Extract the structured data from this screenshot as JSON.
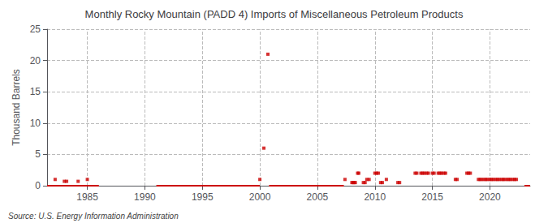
{
  "chart_data": {
    "type": "scatter",
    "title": "Monthly Rocky Mountain (PADD 4) Imports of Miscellaneous Petroleum Products",
    "ylabel": "Thousand Barrels",
    "source": "Source: U.S. Energy Information Administration",
    "color": "#cc0000",
    "marker": "square",
    "grid": true,
    "xlim": [
      1981.5,
      2023.5
    ],
    "xticks": [
      1985,
      1990,
      1995,
      2000,
      2005,
      2010,
      2015,
      2020
    ],
    "ylim": [
      0,
      25
    ],
    "yticks": [
      0,
      5,
      10,
      15,
      20,
      25
    ],
    "x": [
      1982.2,
      1983.0,
      1983.2,
      1984.2,
      1985.0,
      2000.0,
      2000.35,
      2000.7,
      2007.4,
      2008.0,
      2008.1,
      2008.2,
      2008.3,
      2008.5,
      2008.6,
      2009.0,
      2009.15,
      2009.3,
      2009.5,
      2010.0,
      2010.15,
      2010.3,
      2010.5,
      2010.65,
      2011.0,
      2012.0,
      2012.15,
      2013.5,
      2013.65,
      2014.0,
      2014.15,
      2014.3,
      2014.5,
      2014.65,
      2015.0,
      2015.15,
      2015.5,
      2015.65,
      2015.8,
      2016.0,
      2016.15,
      2017.0,
      2017.15,
      2018.0,
      2018.15,
      2018.3,
      2019.0,
      2019.15,
      2019.3,
      2019.5,
      2019.65,
      2019.8,
      2020.0,
      2020.15,
      2020.3,
      2020.5,
      2020.65,
      2020.8,
      2021.0,
      2021.15,
      2021.3,
      2021.5,
      2021.65,
      2021.8,
      2022.0,
      2022.15,
      2022.3
    ],
    "values": [
      1.0,
      0.7,
      0.7,
      0.7,
      1.0,
      1.0,
      6.0,
      21.0,
      1.0,
      0.5,
      0.5,
      0.5,
      0.5,
      2.0,
      2.0,
      0.5,
      0.5,
      1.0,
      1.0,
      2.0,
      2.0,
      2.0,
      0.5,
      0.5,
      1.0,
      0.5,
      0.5,
      2.0,
      2.0,
      2.0,
      2.0,
      2.0,
      2.0,
      2.0,
      2.0,
      2.0,
      2.0,
      2.0,
      2.0,
      2.0,
      2.0,
      1.0,
      1.0,
      2.0,
      2.0,
      2.0,
      1.0,
      1.0,
      1.0,
      1.0,
      1.0,
      1.0,
      1.0,
      1.0,
      1.0,
      1.0,
      1.0,
      1.0,
      1.0,
      1.0,
      1.0,
      1.0,
      1.0,
      1.0,
      1.0,
      1.0,
      1.0
    ],
    "zero_line_segments": [
      [
        1981.5,
        1986.0
      ],
      [
        1991.0,
        2000.0
      ],
      [
        2000.8,
        2007.3
      ],
      [
        2023.0,
        2023.5
      ]
    ]
  }
}
